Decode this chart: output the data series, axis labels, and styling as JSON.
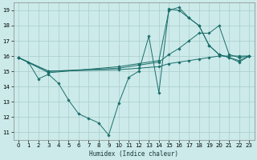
{
  "xlabel": "Humidex (Indice chaleur)",
  "bg_color": "#cceaea",
  "grid_color": "#aacccc",
  "line_color": "#1a6e6a",
  "xlim": [
    -0.5,
    23.5
  ],
  "ylim": [
    10.5,
    19.5
  ],
  "yticks": [
    11,
    12,
    13,
    14,
    15,
    16,
    17,
    18,
    19
  ],
  "xticks": [
    0,
    1,
    2,
    3,
    4,
    5,
    6,
    7,
    8,
    9,
    10,
    11,
    12,
    13,
    14,
    15,
    16,
    17,
    18,
    19,
    20,
    21,
    22,
    23
  ],
  "lines": [
    {
      "x": [
        0,
        1,
        2,
        3,
        4,
        5,
        6,
        7,
        8,
        9,
        10,
        11,
        12,
        13,
        14,
        15,
        16,
        17,
        18,
        19,
        20,
        21,
        22,
        23
      ],
      "y": [
        15.9,
        15.6,
        14.5,
        14.8,
        14.2,
        13.1,
        12.2,
        11.9,
        11.6,
        10.8,
        12.9,
        14.6,
        15.0,
        17.3,
        13.6,
        19.1,
        19.0,
        18.5,
        18.0,
        16.7,
        16.1,
        15.9,
        15.6,
        16.0
      ]
    },
    {
      "x": [
        0,
        3,
        10,
        12,
        14,
        15,
        16,
        17,
        18,
        19,
        20,
        21,
        22,
        23
      ],
      "y": [
        15.9,
        15.0,
        15.1,
        15.2,
        15.3,
        15.5,
        15.6,
        15.7,
        15.8,
        15.9,
        16.0,
        16.0,
        16.0,
        16.0
      ]
    },
    {
      "x": [
        0,
        3,
        10,
        12,
        14,
        15,
        16,
        17,
        18,
        19,
        20,
        21,
        22,
        23
      ],
      "y": [
        15.9,
        15.0,
        15.2,
        15.4,
        15.6,
        16.1,
        16.5,
        17.0,
        17.5,
        17.5,
        18.0,
        16.1,
        15.9,
        16.0
      ]
    },
    {
      "x": [
        0,
        3,
        10,
        12,
        14,
        15,
        16,
        17,
        18,
        19,
        20,
        21,
        22,
        23
      ],
      "y": [
        15.9,
        14.9,
        15.3,
        15.5,
        15.7,
        19.0,
        19.2,
        18.5,
        18.0,
        16.7,
        16.1,
        15.9,
        15.7,
        16.0
      ]
    }
  ]
}
